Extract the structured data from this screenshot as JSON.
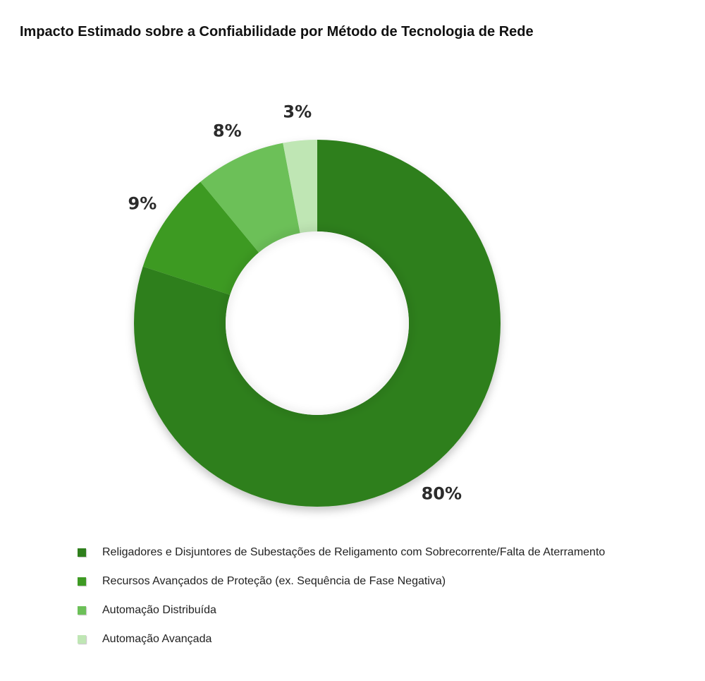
{
  "chart_data": {
    "type": "pie",
    "style": "donut",
    "title": "Impacto Estimado sobre a Confiabilidade por Método de Tecnologia de Rede",
    "legend_position": "bottom-left",
    "slices": [
      {
        "name": "Religadores e Disjuntores de Subestações de Religamento com Sobrecorrente/Falta de Aterramento",
        "value": 80,
        "label": "80%",
        "color": "#2f7f1c"
      },
      {
        "name": "Recursos Avançados de Proteção (ex. Sequência de Fase Negativa)",
        "value": 9,
        "label": "9%",
        "color": "#3e9a23"
      },
      {
        "name": "Automação Distribuída",
        "value": 8,
        "label": "8%",
        "color": "#6cc058"
      },
      {
        "name": "Automação Avançada",
        "value": 3,
        "label": "3%",
        "color": "#bfe6b4"
      }
    ]
  }
}
